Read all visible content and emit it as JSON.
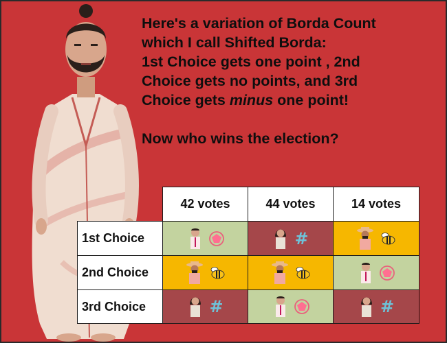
{
  "speech": {
    "line1": "Here's a variation of Borda Count",
    "line2": "which I call Shifted Borda:",
    "line3": "1st Choice gets one point , 2nd",
    "line4": "Choice gets no points, and 3rd",
    "line5_a": "Choice gets ",
    "line5_em": "minus",
    "line5_b": " one point!",
    "question": "Now who wins the election?"
  },
  "table": {
    "columns": [
      "42 votes",
      "44 votes",
      "14 votes"
    ],
    "rows": [
      {
        "label": "1st Choice",
        "cells": [
          {
            "candidate": "man-pentagon",
            "symbol": "pentagon-icon",
            "color": "#c3d39f"
          },
          {
            "candidate": "woman-hash",
            "symbol": "hash-icon",
            "color": "#a5474a"
          },
          {
            "candidate": "hat-man-bee",
            "symbol": "bee-icon",
            "color": "#f6b700"
          }
        ]
      },
      {
        "label": "2nd Choice",
        "cells": [
          {
            "candidate": "hat-man-bee",
            "symbol": "bee-icon",
            "color": "#f6b700"
          },
          {
            "candidate": "hat-man-bee",
            "symbol": "bee-icon",
            "color": "#f6b700"
          },
          {
            "candidate": "man-pentagon",
            "symbol": "pentagon-icon",
            "color": "#c3d39f"
          }
        ]
      },
      {
        "label": "3rd Choice",
        "cells": [
          {
            "candidate": "woman-hash",
            "symbol": "hash-icon",
            "color": "#a5474a"
          },
          {
            "candidate": "man-pentagon",
            "symbol": "pentagon-icon",
            "color": "#c3d39f"
          },
          {
            "candidate": "woman-hash",
            "symbol": "hash-icon",
            "color": "#a5474a"
          }
        ]
      }
    ]
  },
  "hash_symbol": "#"
}
